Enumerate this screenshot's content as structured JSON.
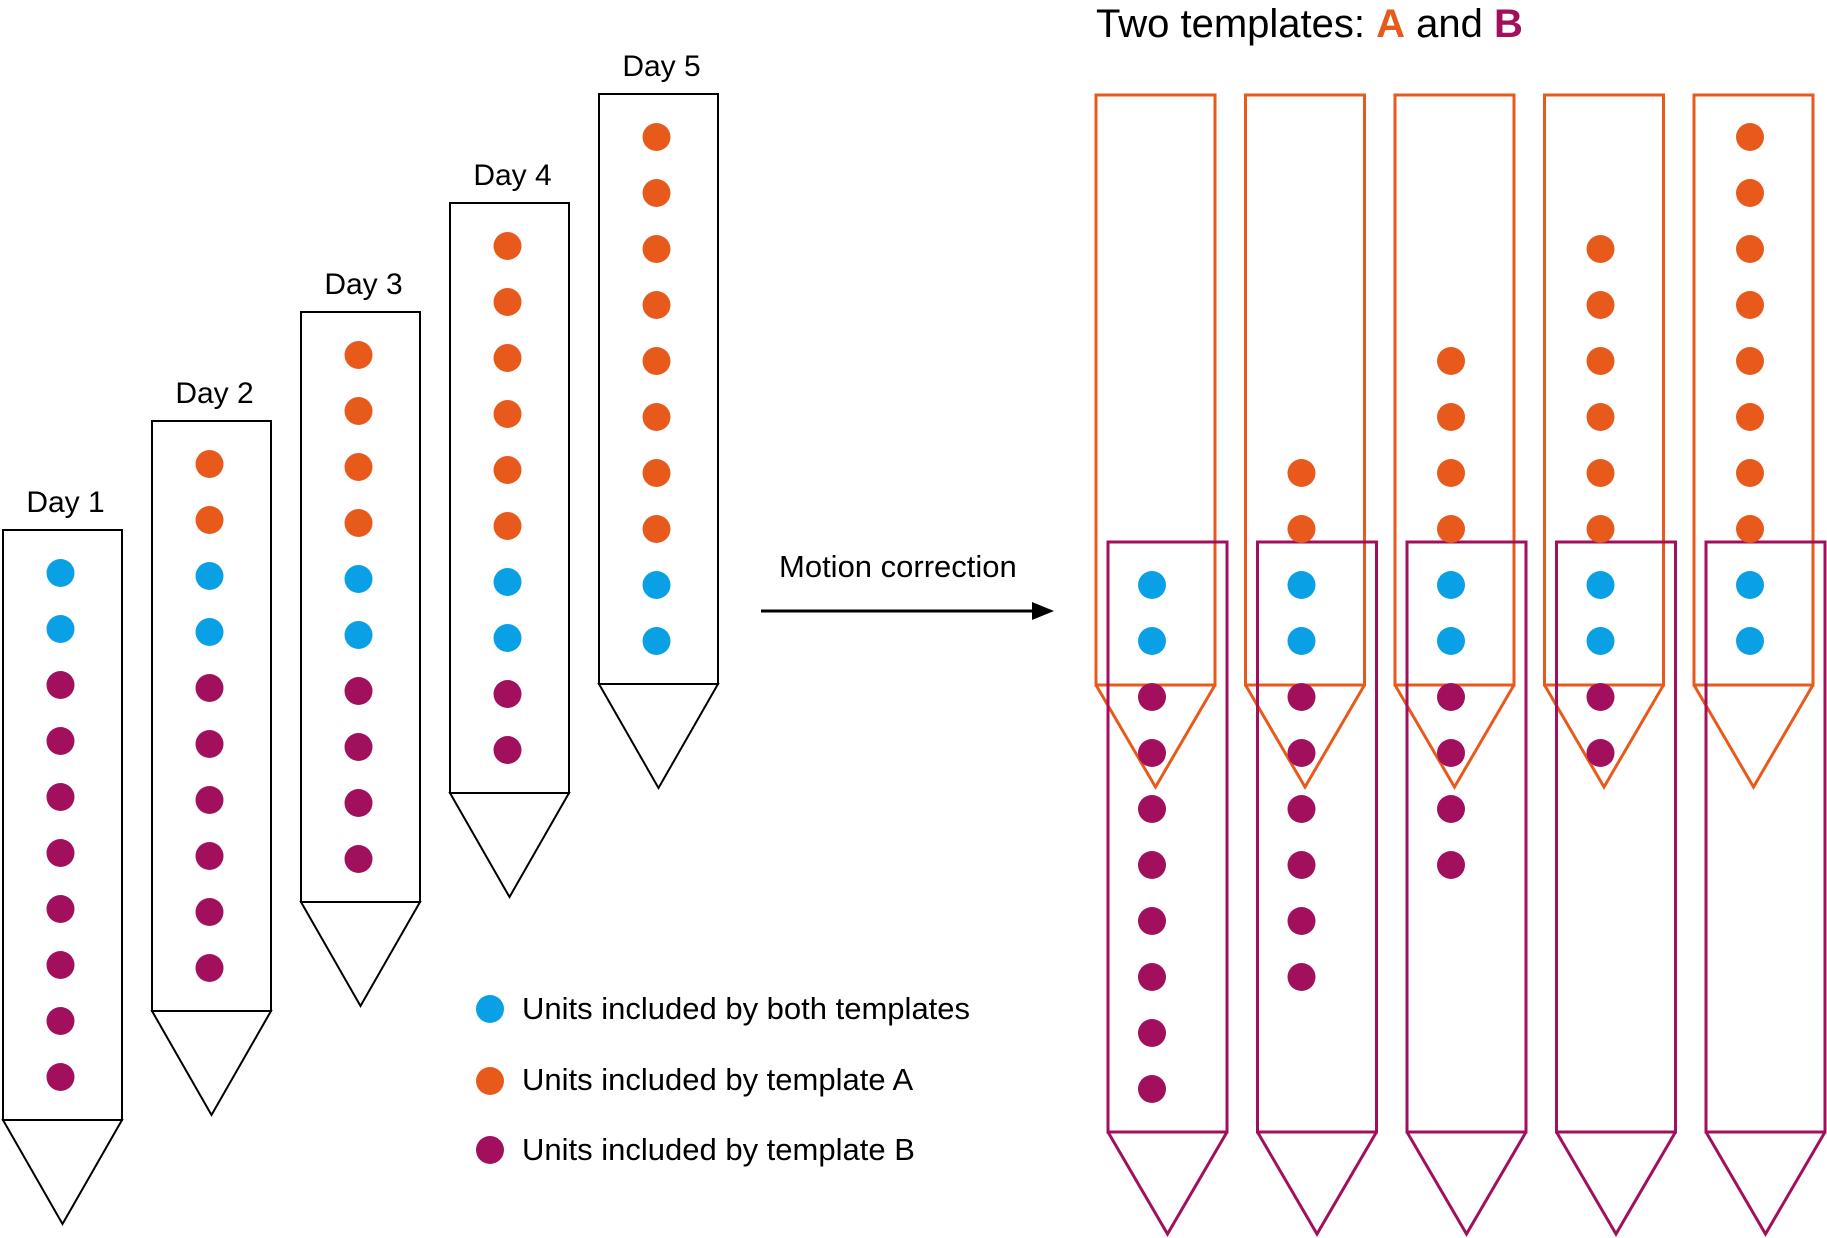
{
  "colors": {
    "both": "#0AA0E6",
    "template_a": "#E85A1B",
    "template_b": "#A20F5C",
    "probe_outline": "#000000"
  },
  "left": {
    "probes": [
      {
        "label": "Day 1",
        "dots": [
          "both",
          "both",
          "B",
          "B",
          "B",
          "B",
          "B",
          "B",
          "B",
          "B"
        ]
      },
      {
        "label": "Day 2",
        "dots": [
          "A",
          "A",
          "both",
          "both",
          "B",
          "B",
          "B",
          "B",
          "B",
          "B"
        ]
      },
      {
        "label": "Day 3",
        "dots": [
          "A",
          "A",
          "A",
          "A",
          "both",
          "both",
          "B",
          "B",
          "B",
          "B"
        ]
      },
      {
        "label": "Day 4",
        "dots": [
          "A",
          "A",
          "A",
          "A",
          "A",
          "A",
          "both",
          "both",
          "B",
          "B"
        ]
      },
      {
        "label": "Day 5",
        "dots": [
          "A",
          "A",
          "A",
          "A",
          "A",
          "A",
          "A",
          "A",
          "both",
          "both"
        ]
      }
    ]
  },
  "legend": {
    "items": [
      {
        "type": "both",
        "label": "Units included by both templates"
      },
      {
        "type": "A",
        "label": "Units included by template A"
      },
      {
        "type": "B",
        "label": "Units included by template B"
      }
    ]
  },
  "arrow": {
    "label": "Motion correction"
  },
  "right": {
    "title_prefix": "Two templates: ",
    "title_a": "A",
    "title_and": " and ",
    "title_b": "B",
    "columns": [
      {
        "a_count": 0,
        "both_count": 2,
        "b_count": 8
      },
      {
        "a_count": 2,
        "both_count": 2,
        "b_count": 6
      },
      {
        "a_count": 4,
        "both_count": 2,
        "b_count": 4
      },
      {
        "a_count": 6,
        "both_count": 2,
        "b_count": 2
      },
      {
        "a_count": 8,
        "both_count": 2,
        "b_count": 0
      }
    ]
  }
}
